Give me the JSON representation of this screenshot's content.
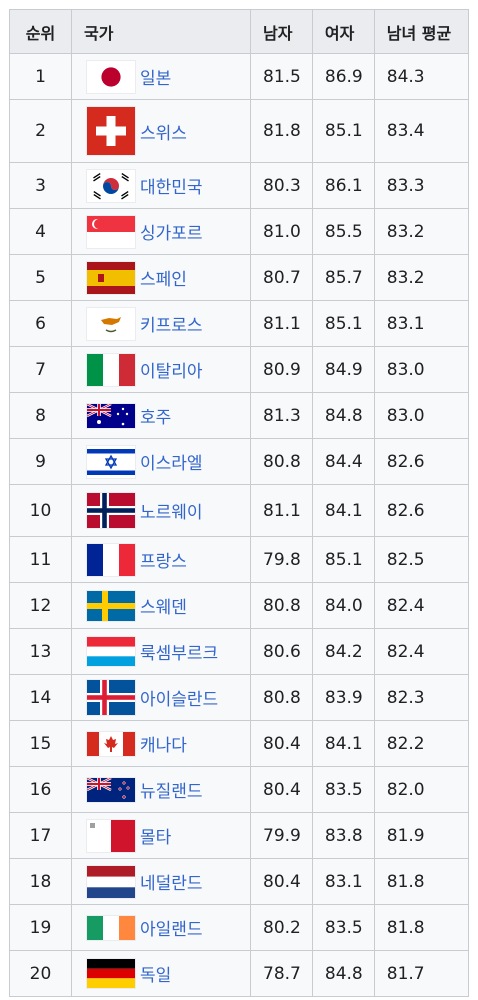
{
  "headers": {
    "rank": "순위",
    "country": "국가",
    "male": "남자",
    "female": "여자",
    "average": "남녀 평균"
  },
  "rows": [
    {
      "rank": "1",
      "country": "일본",
      "male": "81.5",
      "female": "86.9",
      "avg": "84.3",
      "flag": "japan-flag-icon"
    },
    {
      "rank": "2",
      "country": "스위스",
      "male": "81.8",
      "female": "85.1",
      "avg": "83.4",
      "flag": "switzerland-flag-icon"
    },
    {
      "rank": "3",
      "country": "대한민국",
      "male": "80.3",
      "female": "86.1",
      "avg": "83.3",
      "flag": "south-korea-flag-icon"
    },
    {
      "rank": "4",
      "country": "싱가포르",
      "male": "81.0",
      "female": "85.5",
      "avg": "83.2",
      "flag": "singapore-flag-icon"
    },
    {
      "rank": "5",
      "country": "스페인",
      "male": "80.7",
      "female": "85.7",
      "avg": "83.2",
      "flag": "spain-flag-icon"
    },
    {
      "rank": "6",
      "country": "키프로스",
      "male": "81.1",
      "female": "85.1",
      "avg": "83.1",
      "flag": "cyprus-flag-icon"
    },
    {
      "rank": "7",
      "country": "이탈리아",
      "male": "80.9",
      "female": "84.9",
      "avg": "83.0",
      "flag": "italy-flag-icon"
    },
    {
      "rank": "8",
      "country": "호주",
      "male": "81.3",
      "female": "84.8",
      "avg": "83.0",
      "flag": "australia-flag-icon"
    },
    {
      "rank": "9",
      "country": "이스라엘",
      "male": "80.8",
      "female": "84.4",
      "avg": "82.6",
      "flag": "israel-flag-icon"
    },
    {
      "rank": "10",
      "country": "노르웨이",
      "male": "81.1",
      "female": "84.1",
      "avg": "82.6",
      "flag": "norway-flag-icon"
    },
    {
      "rank": "11",
      "country": "프랑스",
      "male": "79.8",
      "female": "85.1",
      "avg": "82.5",
      "flag": "france-flag-icon"
    },
    {
      "rank": "12",
      "country": "스웨덴",
      "male": "80.8",
      "female": "84.0",
      "avg": "82.4",
      "flag": "sweden-flag-icon"
    },
    {
      "rank": "13",
      "country": "룩셈부르크",
      "male": "80.6",
      "female": "84.2",
      "avg": "82.4",
      "flag": "luxembourg-flag-icon"
    },
    {
      "rank": "14",
      "country": "아이슬란드",
      "male": "80.8",
      "female": "83.9",
      "avg": "82.3",
      "flag": "iceland-flag-icon"
    },
    {
      "rank": "15",
      "country": "캐나다",
      "male": "80.4",
      "female": "84.1",
      "avg": "82.2",
      "flag": "canada-flag-icon"
    },
    {
      "rank": "16",
      "country": "뉴질랜드",
      "male": "80.4",
      "female": "83.5",
      "avg": "82.0",
      "flag": "new-zealand-flag-icon"
    },
    {
      "rank": "17",
      "country": "몰타",
      "male": "79.9",
      "female": "83.8",
      "avg": "81.9",
      "flag": "malta-flag-icon"
    },
    {
      "rank": "18",
      "country": "네덜란드",
      "male": "80.4",
      "female": "83.1",
      "avg": "81.8",
      "flag": "netherlands-flag-icon"
    },
    {
      "rank": "19",
      "country": "아일랜드",
      "male": "80.2",
      "female": "83.5",
      "avg": "81.8",
      "flag": "ireland-flag-icon"
    },
    {
      "rank": "20",
      "country": "독일",
      "male": "78.7",
      "female": "84.8",
      "avg": "81.7",
      "flag": "germany-flag-icon"
    }
  ]
}
